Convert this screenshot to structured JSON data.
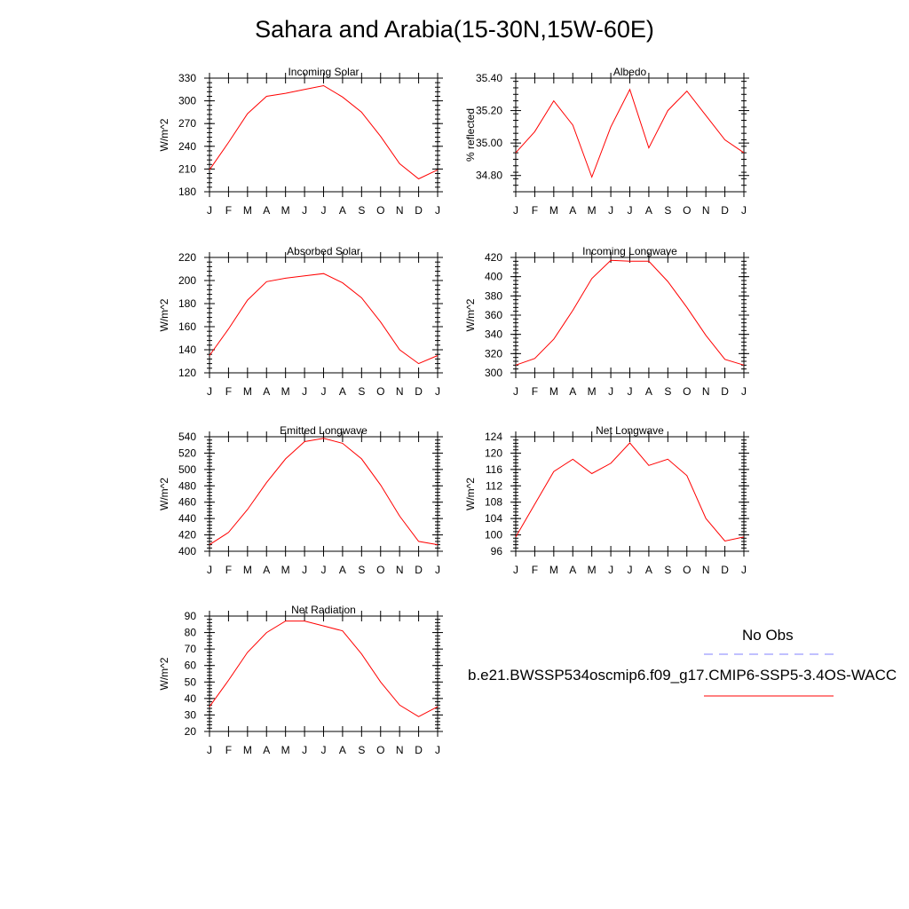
{
  "title": "Sahara and Arabia(15-30N,15W-60E)",
  "months": [
    "J",
    "F",
    "M",
    "A",
    "M",
    "J",
    "J",
    "A",
    "S",
    "O",
    "N",
    "D",
    "J"
  ],
  "line_color": "#ff0000",
  "obs_color": "#8080ff",
  "legend": {
    "obs_label": "No Obs",
    "model_label": "b.e21.BWSSP534oscmip6.f09_g17.CMIP6-SSP5-3.4OS-WACC"
  },
  "chart_data": [
    {
      "type": "line",
      "title": "Incoming Solar",
      "ylabel": "W/m^2",
      "ylim": [
        180,
        330
      ],
      "yticks": [
        "180",
        "210",
        "240",
        "270",
        "300",
        "330"
      ],
      "x": [
        "J",
        "F",
        "M",
        "A",
        "M",
        "J",
        "J",
        "A",
        "S",
        "O",
        "N",
        "D",
        "J"
      ],
      "series": [
        {
          "values": [
            209,
            245,
            283,
            306,
            310,
            315,
            320,
            305,
            285,
            253,
            217,
            197,
            209
          ]
        }
      ]
    },
    {
      "type": "line",
      "title": "Albedo",
      "ylabel": "% reflected",
      "ylim": [
        34.7,
        35.4
      ],
      "yticks": [
        "34.80",
        "35.00",
        "35.20",
        "35.40"
      ],
      "x": [
        "J",
        "F",
        "M",
        "A",
        "M",
        "J",
        "J",
        "A",
        "S",
        "O",
        "N",
        "D",
        "J"
      ],
      "series": [
        {
          "values": [
            34.94,
            35.07,
            35.26,
            35.11,
            34.79,
            35.1,
            35.33,
            34.97,
            35.2,
            35.32,
            35.17,
            35.02,
            34.94
          ]
        }
      ]
    },
    {
      "type": "line",
      "title": "Absorbed Solar",
      "ylabel": "W/m^2",
      "ylim": [
        120,
        220
      ],
      "yticks": [
        "120",
        "140",
        "160",
        "180",
        "200",
        "220"
      ],
      "x": [
        "J",
        "F",
        "M",
        "A",
        "M",
        "J",
        "J",
        "A",
        "S",
        "O",
        "N",
        "D",
        "J"
      ],
      "series": [
        {
          "values": [
            135,
            158,
            183,
            199,
            202,
            204,
            206,
            198,
            185,
            164,
            140,
            128,
            135
          ]
        }
      ]
    },
    {
      "type": "line",
      "title": "Incoming Longwave",
      "ylabel": "W/m^2",
      "ylim": [
        300,
        420
      ],
      "yticks": [
        "300",
        "320",
        "340",
        "360",
        "380",
        "400",
        "420"
      ],
      "x": [
        "J",
        "F",
        "M",
        "A",
        "M",
        "J",
        "J",
        "A",
        "S",
        "O",
        "N",
        "D",
        "J"
      ],
      "series": [
        {
          "values": [
            308,
            315,
            335,
            365,
            398,
            417,
            416,
            416,
            395,
            368,
            339,
            314,
            308
          ]
        }
      ]
    },
    {
      "type": "line",
      "title": "Emitted Longwave",
      "ylabel": "W/m^2",
      "ylim": [
        400,
        540
      ],
      "yticks": [
        "400",
        "420",
        "440",
        "460",
        "480",
        "500",
        "520",
        "540"
      ],
      "x": [
        "J",
        "F",
        "M",
        "A",
        "M",
        "J",
        "J",
        "A",
        "S",
        "O",
        "N",
        "D",
        "J"
      ],
      "series": [
        {
          "values": [
            408,
            423,
            451,
            484,
            513,
            534,
            538,
            532,
            513,
            481,
            443,
            412,
            408
          ]
        }
      ]
    },
    {
      "type": "line",
      "title": "Net Longwave",
      "ylabel": "W/m^2",
      "ylim": [
        96,
        124
      ],
      "yticks": [
        "96",
        "100",
        "104",
        "108",
        "112",
        "116",
        "120",
        "124"
      ],
      "x": [
        "J",
        "F",
        "M",
        "A",
        "M",
        "J",
        "J",
        "A",
        "S",
        "O",
        "N",
        "D",
        "J"
      ],
      "series": [
        {
          "values": [
            99.5,
            107.5,
            115.5,
            118.5,
            115.0,
            117.5,
            122.5,
            117.0,
            118.5,
            114.5,
            104.0,
            98.5,
            99.5
          ]
        }
      ]
    },
    {
      "type": "line",
      "title": "Net Radiation",
      "ylabel": "W/m^2",
      "ylim": [
        20,
        90
      ],
      "yticks": [
        "20",
        "30",
        "40",
        "50",
        "60",
        "70",
        "80",
        "90"
      ],
      "x": [
        "J",
        "F",
        "M",
        "A",
        "M",
        "J",
        "J",
        "A",
        "S",
        "O",
        "N",
        "D",
        "J"
      ],
      "series": [
        {
          "values": [
            35,
            51,
            68,
            80,
            87,
            87,
            84,
            81,
            67,
            50,
            36,
            29,
            35
          ]
        }
      ]
    }
  ]
}
